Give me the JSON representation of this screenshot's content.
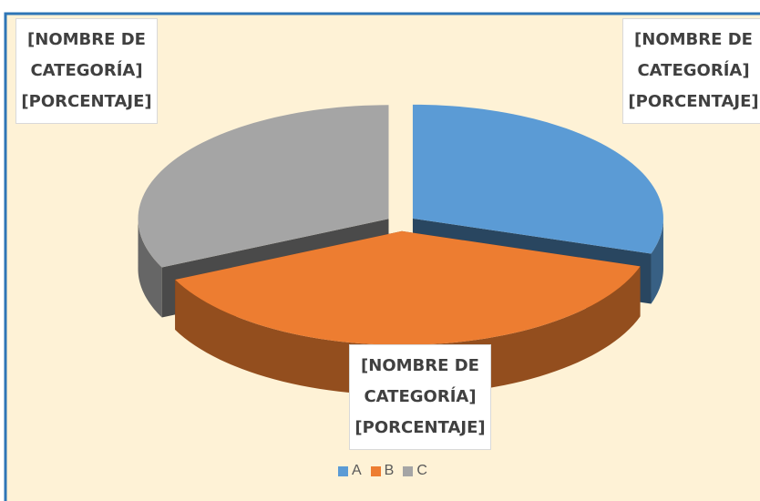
{
  "chart_data": {
    "type": "pie",
    "categories": [
      "A",
      "B",
      "C"
    ],
    "values": [
      30,
      38,
      32
    ],
    "value_labels": [
      "[NOMBRE DE CATEGORÍA] [PORCENTAJE]",
      "[NOMBRE DE CATEGORÍA] [PORCENTAJE]",
      "[NOMBRE DE CATEGORÍA] [PORCENTAJE]"
    ],
    "colors": [
      "#5b9bd5",
      "#ed7d31",
      "#a5a5a5"
    ],
    "legend": "bottom"
  }
}
